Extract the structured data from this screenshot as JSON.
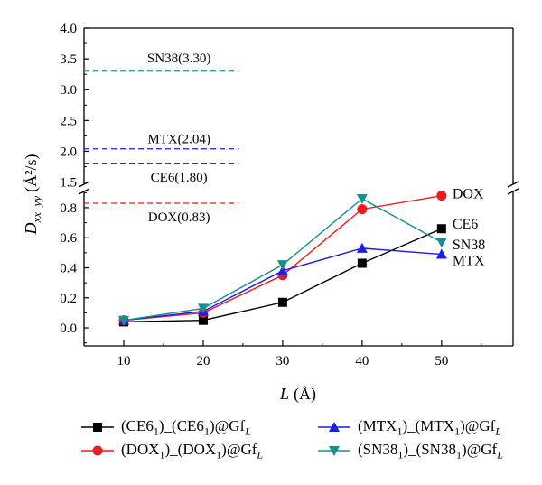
{
  "chart_data": {
    "type": "line",
    "x": [
      10,
      20,
      30,
      40,
      50
    ],
    "xlabel_main": "L",
    "xlabel_unit": "(Å)",
    "ylabel_main": "D",
    "ylabel_sub": "xx_yy",
    "ylabel_unit": "(Å²/s)",
    "xticks": [
      "10",
      "20",
      "30",
      "40",
      "50"
    ],
    "yticks_lower": [
      "0.0",
      "0.2",
      "0.4",
      "0.6",
      "0.8"
    ],
    "yticks_upper": [
      "1.5",
      "2.0",
      "2.5",
      "3.0",
      "3.5",
      "4.0"
    ],
    "xlim": [
      5,
      59
    ],
    "ylim_lower": [
      -0.12,
      0.95
    ],
    "ylim_upper": [
      1.45,
      4.0
    ],
    "axis_break": true,
    "series": [
      {
        "name": "CE6",
        "legend_main": "(CE6",
        "legend_sub1": "1",
        "legend_mid": ")_(CE6",
        "legend_sub2": "1",
        "legend_end": ")@Gf",
        "legend_sub3": "L",
        "color": "#000000",
        "marker": "square",
        "values": [
          0.04,
          0.05,
          0.17,
          0.43,
          0.66
        ]
      },
      {
        "name": "DOX",
        "legend_main": "(DOX",
        "legend_sub1": "1",
        "legend_mid": ")_(DOX",
        "legend_sub2": "1",
        "legend_end": ")@Gf",
        "legend_sub3": "L",
        "color": "#ee1c1c",
        "marker": "circle",
        "values": [
          0.05,
          0.1,
          0.35,
          0.79,
          0.88
        ]
      },
      {
        "name": "MTX",
        "legend_main": "(MTX",
        "legend_sub1": "1",
        "legend_mid": ")_(MTX",
        "legend_sub2": "1",
        "legend_end": ")@Gf",
        "legend_sub3": "L",
        "color": "#1c1cee",
        "marker": "triangle-up",
        "values": [
          0.05,
          0.11,
          0.38,
          0.53,
          0.49
        ]
      },
      {
        "name": "SN38",
        "legend_main": "(SN38",
        "legend_sub1": "1",
        "legend_mid": ")_(SN38",
        "legend_sub2": "1",
        "legend_end": ")@Gf",
        "legend_sub3": "L",
        "color": "#178f8f",
        "marker": "triangle-down",
        "values": [
          0.05,
          0.13,
          0.42,
          0.86,
          0.57
        ]
      }
    ],
    "end_labels": [
      "DOX",
      "CE6",
      "SN38",
      "MTX"
    ],
    "reference_lines": [
      {
        "label": "SN38(3.30)",
        "value": 3.3,
        "color": "#1a9a9a"
      },
      {
        "label": "MTX(2.04)",
        "value": 2.04,
        "color": "#1c1cee"
      },
      {
        "label": "CE6(1.80)",
        "value": 1.8,
        "color": "#000000"
      },
      {
        "label": "DOX(0.83)",
        "value": 0.83,
        "color": "#ee1c1c"
      }
    ]
  }
}
